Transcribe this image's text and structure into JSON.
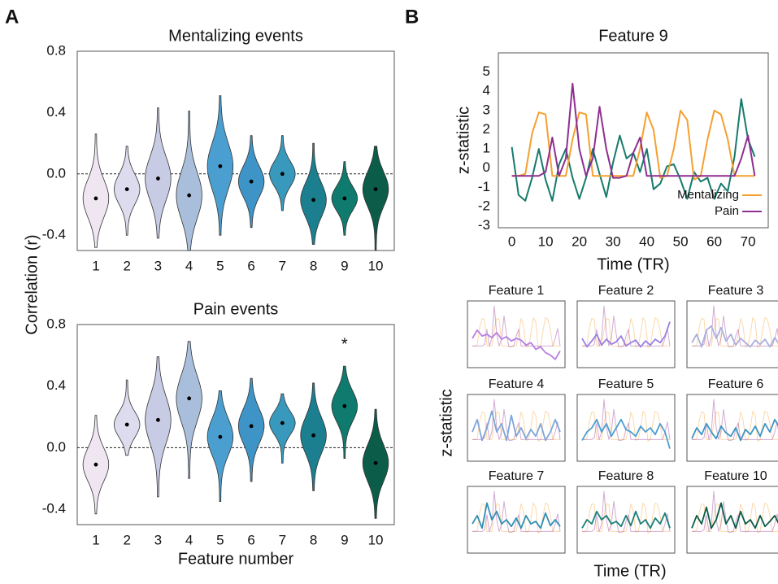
{
  "panels": [
    {
      "label": "A",
      "ylabel": "Correlation (r)",
      "xlabel": "Feature number"
    },
    {
      "label": "B",
      "grid_ylabel": "z-statistic",
      "grid_xlabel": "Time (TR)"
    }
  ],
  "chart_data": [
    {
      "type": "violin",
      "title": "Mentalizing events",
      "categories": [
        "1",
        "2",
        "3",
        "4",
        "5",
        "6",
        "7",
        "8",
        "9",
        "10"
      ],
      "values": [
        -0.16,
        -0.1,
        -0.03,
        -0.14,
        0.05,
        -0.05,
        0.0,
        -0.17,
        -0.16,
        -0.1
      ],
      "mins": [
        -0.48,
        -0.4,
        -0.42,
        -0.5,
        -0.4,
        -0.35,
        -0.24,
        -0.46,
        -0.4,
        -0.5
      ],
      "maxs": [
        0.26,
        0.18,
        0.43,
        0.41,
        0.51,
        0.25,
        0.25,
        0.2,
        0.08,
        0.18
      ],
      "colors": [
        "#efe6f2",
        "#dcdcee",
        "#c8cbe4",
        "#a9bedb",
        "#4b9fd0",
        "#3e94c6",
        "#3899bd",
        "#1b7f8f",
        "#0f7a6e",
        "#0b5c48"
      ],
      "ylim": [
        -0.5,
        0.8
      ],
      "yticks": [
        -0.4,
        {
          "value": 0,
          "label": "0.0"
        },
        0.4,
        0.8
      ],
      "reference_line": 0
    },
    {
      "type": "violin",
      "title": "Pain events",
      "categories": [
        "1",
        "2",
        "3",
        "4",
        "5",
        "6",
        "7",
        "8",
        "9",
        "10"
      ],
      "values": [
        -0.11,
        0.15,
        0.18,
        0.32,
        0.07,
        0.14,
        0.16,
        0.08,
        0.27,
        -0.1
      ],
      "mins": [
        -0.43,
        -0.05,
        -0.32,
        -0.2,
        -0.35,
        -0.22,
        -0.1,
        -0.28,
        -0.07,
        -0.46
      ],
      "maxs": [
        0.21,
        0.44,
        0.59,
        0.69,
        0.37,
        0.45,
        0.35,
        0.42,
        0.53,
        0.25
      ],
      "colors": [
        "#efe6f2",
        "#dcdcee",
        "#c8cbe4",
        "#a9bedb",
        "#4b9fd0",
        "#3e94c6",
        "#3899bd",
        "#1b7f8f",
        "#0f7a6e",
        "#0b5c48"
      ],
      "ylim": [
        -0.5,
        0.8
      ],
      "yticks": [
        -0.4,
        {
          "value": 0,
          "label": "0.0"
        },
        0.4,
        0.8
      ],
      "reference_line": 0,
      "annotations": [
        {
          "text": "*",
          "category": "9"
        }
      ]
    },
    {
      "type": "line",
      "title": "Feature 9",
      "xlabel": "Time (TR)",
      "ylabel": "z-statistic",
      "x": [
        0,
        2,
        4,
        6,
        8,
        10,
        12,
        14,
        16,
        18,
        20,
        22,
        24,
        26,
        28,
        30,
        32,
        34,
        36,
        38,
        40,
        42,
        44,
        46,
        48,
        50,
        52,
        54,
        56,
        58,
        60,
        62,
        64,
        66,
        68,
        70,
        72
      ],
      "series": [
        {
          "color": "#167a6b",
          "values": [
            1.1,
            -1.4,
            -1.7,
            -0.5,
            1.0,
            -0.6,
            -1.7,
            0.2,
            1.0,
            -0.5,
            -1.6,
            -0.5,
            1.0,
            -0.3,
            -1.5,
            0.3,
            1.7,
            0.5,
            0.8,
            -0.2,
            1.0,
            -1.1,
            -0.8,
            0.1,
            0.2,
            -0.6,
            -1.6,
            -0.2,
            -0.7,
            -0.5,
            -1.6,
            -0.8,
            -1.2,
            0.6,
            3.6,
            1.5,
            0.6
          ]
        },
        {
          "name": "Mentalizing",
          "color": "#f5a030",
          "values": [
            -0.4,
            -0.4,
            -0.3,
            1.8,
            2.9,
            2.8,
            -0.4,
            -0.4,
            -0.4,
            1.5,
            2.9,
            2.8,
            -0.4,
            -0.4,
            -0.4,
            -0.4,
            -0.4,
            -0.4,
            -0.4,
            1.0,
            2.9,
            2.0,
            -0.5,
            -0.4,
            1.0,
            3.0,
            2.5,
            -0.6,
            -0.4,
            1.5,
            3.0,
            2.8,
            1.5,
            -0.4,
            -0.4,
            -0.4,
            -0.4
          ]
        },
        {
          "name": "Pain",
          "color": "#8e2e91",
          "values": [
            -0.4,
            -0.4,
            -0.4,
            -0.4,
            -0.4,
            -0.2,
            1.6,
            -0.4,
            0.5,
            4.4,
            1.0,
            -0.4,
            0.5,
            3.2,
            1.0,
            -0.5,
            -0.5,
            -0.4,
            0.8,
            1.6,
            -0.4,
            -0.4,
            -0.4,
            -0.4,
            -0.4,
            -0.4,
            -0.4,
            -0.4,
            -0.4,
            -0.4,
            -0.4,
            -0.4,
            -0.4,
            -0.4,
            0.5,
            1.7,
            -0.4
          ]
        }
      ],
      "xlim": [
        -4,
        76
      ],
      "ylim": [
        -3.1,
        6
      ],
      "xticks": [
        0,
        10,
        20,
        30,
        40,
        50,
        60,
        70
      ],
      "yticks": [
        -3,
        -2,
        -1,
        0,
        1,
        2,
        3,
        4,
        5
      ],
      "legend": "lower right"
    },
    {
      "type": "line",
      "title": "Feature 1",
      "x": [
        0,
        4,
        8,
        12,
        16,
        20,
        24,
        28,
        32,
        36,
        40,
        44,
        48,
        52,
        56,
        60,
        64,
        68,
        72
      ],
      "xlim": [
        -4,
        76
      ],
      "ylim": [
        -3,
        5
      ],
      "series": [
        {
          "color": "#b77fe0",
          "values": [
            0.5,
            1.5,
            0.8,
            1.0,
            0.6,
            1.2,
            0.4,
            0.7,
            0.2,
            0.5,
            0.3,
            -0.3,
            0.0,
            -0.8,
            -0.5,
            -1.2,
            -1.5,
            -2.0,
            -1.0
          ]
        }
      ]
    },
    {
      "type": "line",
      "title": "Feature 2",
      "x": [
        0,
        4,
        8,
        12,
        16,
        20,
        24,
        28,
        32,
        36,
        40,
        44,
        48,
        52,
        56,
        60,
        64,
        68,
        72
      ],
      "xlim": [
        -4,
        76
      ],
      "ylim": [
        -3,
        5
      ],
      "series": [
        {
          "color": "#9a7fe0",
          "values": [
            0.5,
            -0.5,
            0.2,
            1.0,
            -0.3,
            0.4,
            -0.2,
            0.1,
            0.8,
            -0.4,
            0.0,
            0.3,
            -0.5,
            0.2,
            -0.3,
            0.4,
            0.0,
            0.8,
            2.5
          ]
        }
      ]
    },
    {
      "type": "line",
      "title": "Feature 3",
      "x": [
        0,
        4,
        8,
        12,
        16,
        20,
        24,
        28,
        32,
        36,
        40,
        44,
        48,
        52,
        56,
        60,
        64,
        68,
        72
      ],
      "xlim": [
        -4,
        76
      ],
      "ylim": [
        -3,
        5
      ],
      "series": [
        {
          "color": "#aab0dd",
          "values": [
            0.0,
            1.0,
            -0.5,
            1.5,
            2.0,
            0.5,
            1.8,
            0.2,
            1.0,
            -0.3,
            0.5,
            0.0,
            -0.5,
            0.3,
            -0.2,
            0.4,
            -0.5,
            0.6,
            -0.3
          ]
        }
      ]
    },
    {
      "type": "line",
      "title": "Feature 4",
      "x": [
        0,
        4,
        8,
        12,
        16,
        20,
        24,
        28,
        32,
        36,
        40,
        44,
        48,
        52,
        56,
        60,
        64,
        68,
        72
      ],
      "xlim": [
        -4,
        76
      ],
      "ylim": [
        -3,
        5
      ],
      "series": [
        {
          "color": "#7fa6d8",
          "values": [
            0.5,
            2.0,
            -0.5,
            1.0,
            3.0,
            0.5,
            1.5,
            -0.5,
            2.5,
            0.0,
            1.0,
            -0.3,
            0.8,
            0.0,
            1.5,
            -0.5,
            0.5,
            2.0,
            0.5
          ]
        }
      ]
    },
    {
      "type": "line",
      "title": "Feature 5",
      "x": [
        0,
        4,
        8,
        12,
        16,
        20,
        24,
        28,
        32,
        36,
        40,
        44,
        48,
        52,
        56,
        60,
        64,
        68,
        72
      ],
      "xlim": [
        -4,
        76
      ],
      "ylim": [
        -3,
        5
      ],
      "series": [
        {
          "color": "#4b9fd0",
          "values": [
            -0.5,
            0.5,
            1.0,
            2.0,
            0.5,
            1.5,
            0.0,
            1.0,
            2.0,
            0.8,
            0.5,
            0.0,
            1.2,
            0.5,
            1.0,
            0.2,
            1.5,
            0.5,
            -1.5
          ]
        }
      ]
    },
    {
      "type": "line",
      "title": "Feature 6",
      "x": [
        0,
        4,
        8,
        12,
        16,
        20,
        24,
        28,
        32,
        36,
        40,
        44,
        48,
        52,
        56,
        60,
        64,
        68,
        72
      ],
      "xlim": [
        -4,
        76
      ],
      "ylim": [
        -3,
        5
      ],
      "series": [
        {
          "color": "#3e94c6",
          "values": [
            -0.3,
            1.0,
            0.2,
            1.5,
            0.5,
            -0.3,
            1.2,
            0.4,
            0.0,
            1.0,
            -0.5,
            0.8,
            0.2,
            1.2,
            0.0,
            1.5,
            0.5,
            2.0,
            1.0
          ]
        }
      ]
    },
    {
      "type": "line",
      "title": "Feature 7",
      "x": [
        0,
        4,
        8,
        12,
        16,
        20,
        24,
        28,
        32,
        36,
        40,
        44,
        48,
        52,
        56,
        60,
        64,
        68,
        72
      ],
      "xlim": [
        -4,
        76
      ],
      "ylim": [
        -3,
        5
      ],
      "series": [
        {
          "color": "#2f8fb5",
          "values": [
            0.5,
            1.5,
            0.0,
            3.0,
            1.0,
            2.0,
            0.5,
            1.0,
            0.2,
            1.2,
            0.0,
            1.5,
            0.5,
            0.8,
            0.0,
            1.8,
            0.3,
            1.0,
            0.2
          ]
        }
      ]
    },
    {
      "type": "line",
      "title": "Feature 8",
      "x": [
        0,
        4,
        8,
        12,
        16,
        20,
        24,
        28,
        32,
        36,
        40,
        44,
        48,
        52,
        56,
        60,
        64,
        68,
        72
      ],
      "xlim": [
        -4,
        76
      ],
      "ylim": [
        -3,
        5
      ],
      "series": [
        {
          "color": "#1b7f7a",
          "values": [
            0.0,
            1.0,
            0.5,
            2.0,
            1.0,
            1.5,
            0.5,
            0.8,
            0.2,
            1.5,
            0.3,
            2.0,
            0.5,
            1.0,
            0.0,
            1.2,
            0.5,
            1.8,
            0.0
          ]
        }
      ]
    },
    {
      "type": "line",
      "title": "Feature 10",
      "x": [
        0,
        4,
        8,
        12,
        16,
        20,
        24,
        28,
        32,
        36,
        40,
        44,
        48,
        52,
        56,
        60,
        64,
        68,
        72
      ],
      "xlim": [
        -4,
        76
      ],
      "ylim": [
        -3,
        5
      ],
      "series": [
        {
          "color": "#0b5c48",
          "values": [
            0.0,
            1.5,
            0.5,
            2.5,
            0.0,
            1.0,
            3.0,
            0.5,
            1.5,
            0.0,
            2.0,
            0.5,
            1.0,
            0.0,
            1.5,
            0.2,
            0.8,
            1.5,
            0.3
          ]
        }
      ]
    }
  ]
}
